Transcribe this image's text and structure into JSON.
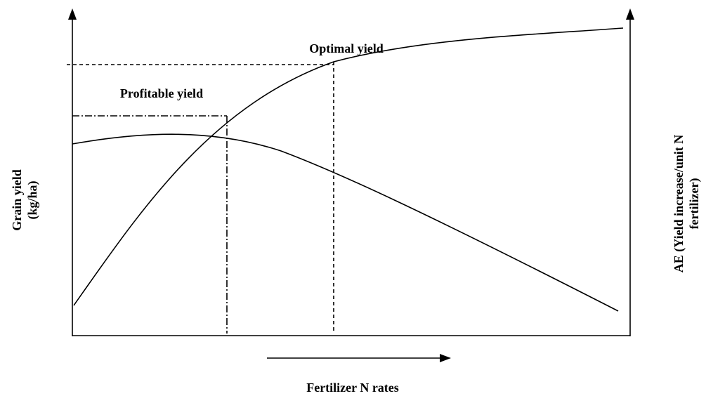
{
  "annotations": {
    "optimal": "Optimal yield",
    "profitable": "Profitable yield"
  },
  "axes": {
    "left": [
      "Grain yield",
      "(kg/ha)"
    ],
    "right": [
      "AE (Yield increase/unit N",
      "fertilizer)"
    ],
    "bottom": "Fertilizer N rates"
  }
}
